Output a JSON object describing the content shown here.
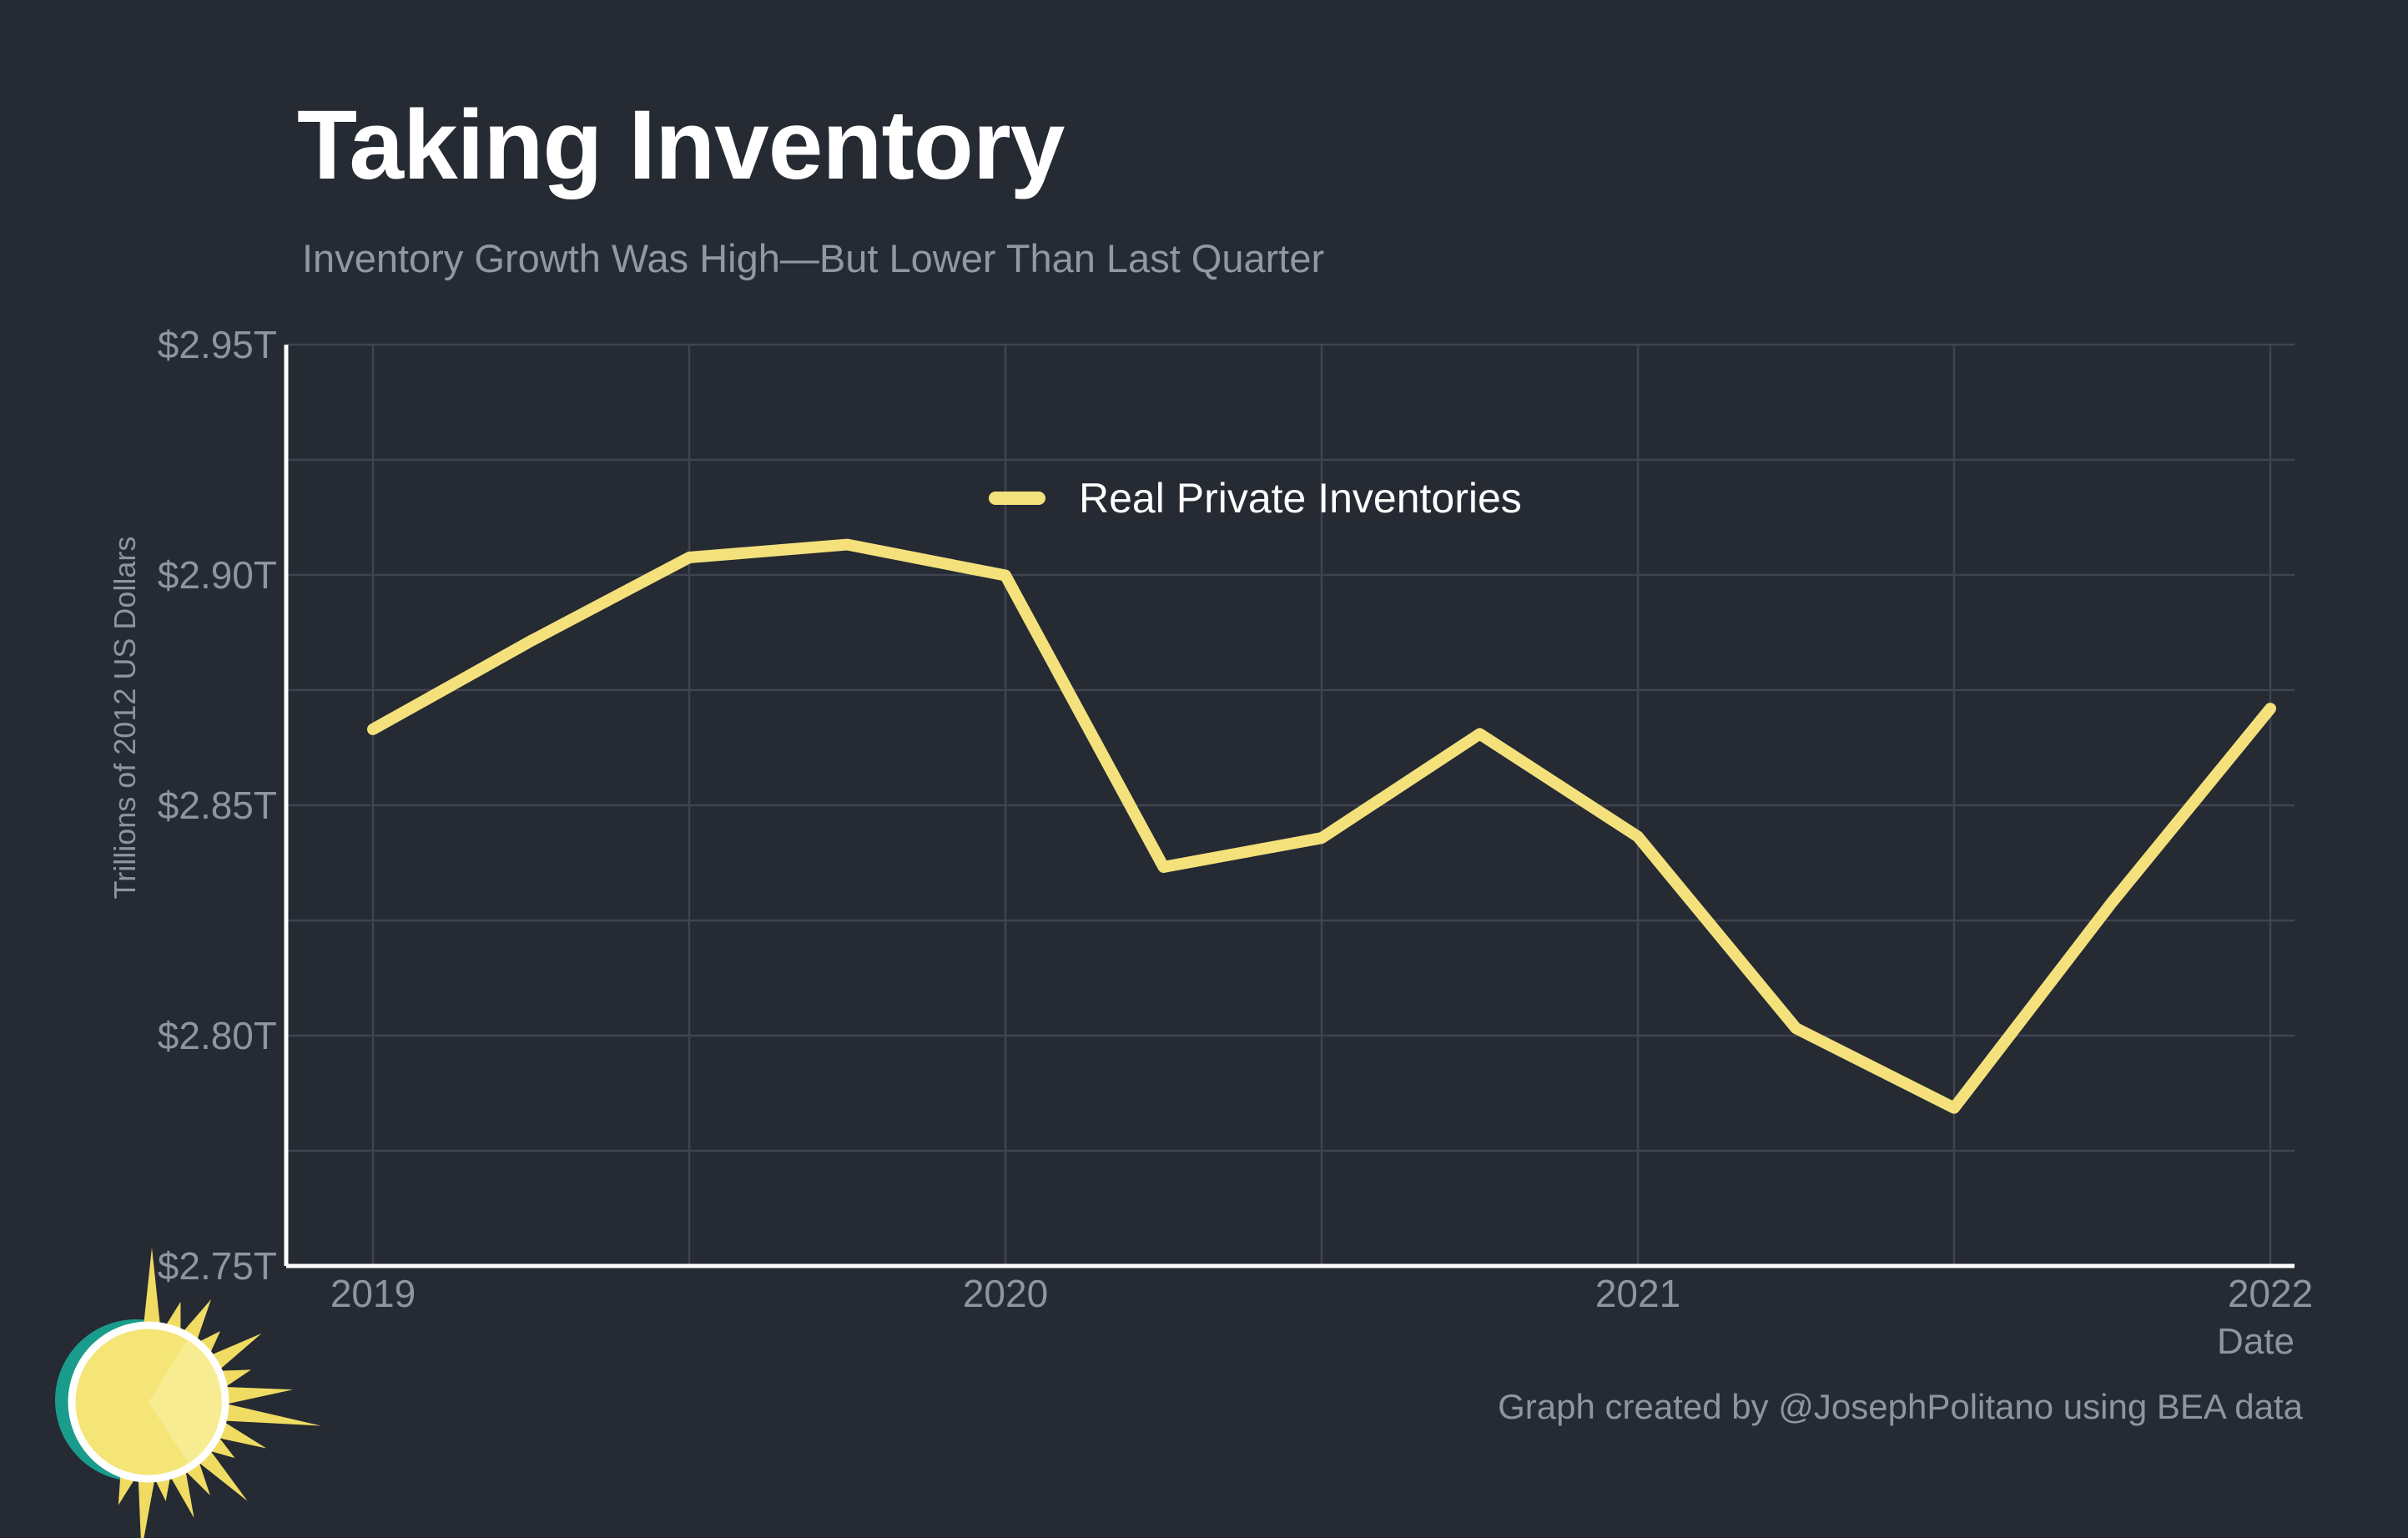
{
  "title": "Taking Inventory",
  "subtitle": "Inventory Growth Was High—But Lower Than Last Quarter",
  "credit": "Graph created by @JosephPolitano using BEA data",
  "colors": {
    "background": "#252a33",
    "gridline": "#3f444f",
    "axis_line": "#ffffff",
    "tick_label": "#8f95a0",
    "series_line": "#f5e17c",
    "title": "#ffffff",
    "subtitle": "#9298a2",
    "logo_teal": "#1a9c8c",
    "logo_ray_yellow": "#f0dc62",
    "logo_disc_yellow": "#f5e476",
    "logo_disc_highlight": "#f9ee9a",
    "logo_ring": "#ffffff"
  },
  "chart_data": {
    "type": "line",
    "title": "Taking Inventory",
    "subtitle": "Inventory Growth Was High—But Lower Than Last Quarter",
    "xlabel": "Date",
    "ylabel": "Trillions of 2012 US Dollars",
    "unit": "trillions of 2012 US dollars",
    "grid": true,
    "legend_position": "inside-top-center",
    "xlim": [
      2019.0,
      2022.04
    ],
    "ylim": [
      2.75,
      2.95
    ],
    "x_tick_years": [
      2019,
      2020,
      2021,
      2022
    ],
    "x_tick_labels": [
      "2019",
      "2020",
      "2021",
      "2022"
    ],
    "y_tick_values": [
      2.75,
      2.8,
      2.85,
      2.9,
      2.95
    ],
    "y_tick_labels": [
      "$2.75T",
      "$2.80T",
      "$2.85T",
      "$2.90T",
      "$2.95T"
    ],
    "gridline_step_y": 0.025,
    "gridline_step_x_years": 0.5,
    "series": [
      {
        "name": "Real Private Inventories",
        "color": "#f5e17c",
        "quarters": [
          "2019 Q1",
          "2019 Q2",
          "2019 Q3",
          "2019 Q4",
          "2020 Q1",
          "2020 Q2",
          "2020 Q3",
          "2020 Q4",
          "2021 Q1",
          "2021 Q2",
          "2021 Q3",
          "2021 Q4",
          "2022 Q1"
        ],
        "x": [
          2019.0,
          2019.25,
          2019.5,
          2019.75,
          2020.0,
          2020.25,
          2020.5,
          2020.75,
          2021.0,
          2021.25,
          2021.5,
          2021.75,
          2022.0
        ],
        "values": [
          2.8665,
          2.8857,
          2.9038,
          2.9066,
          2.8999,
          2.8366,
          2.8429,
          2.8655,
          2.8432,
          2.8016,
          2.7843,
          2.829,
          2.871
        ]
      }
    ]
  }
}
